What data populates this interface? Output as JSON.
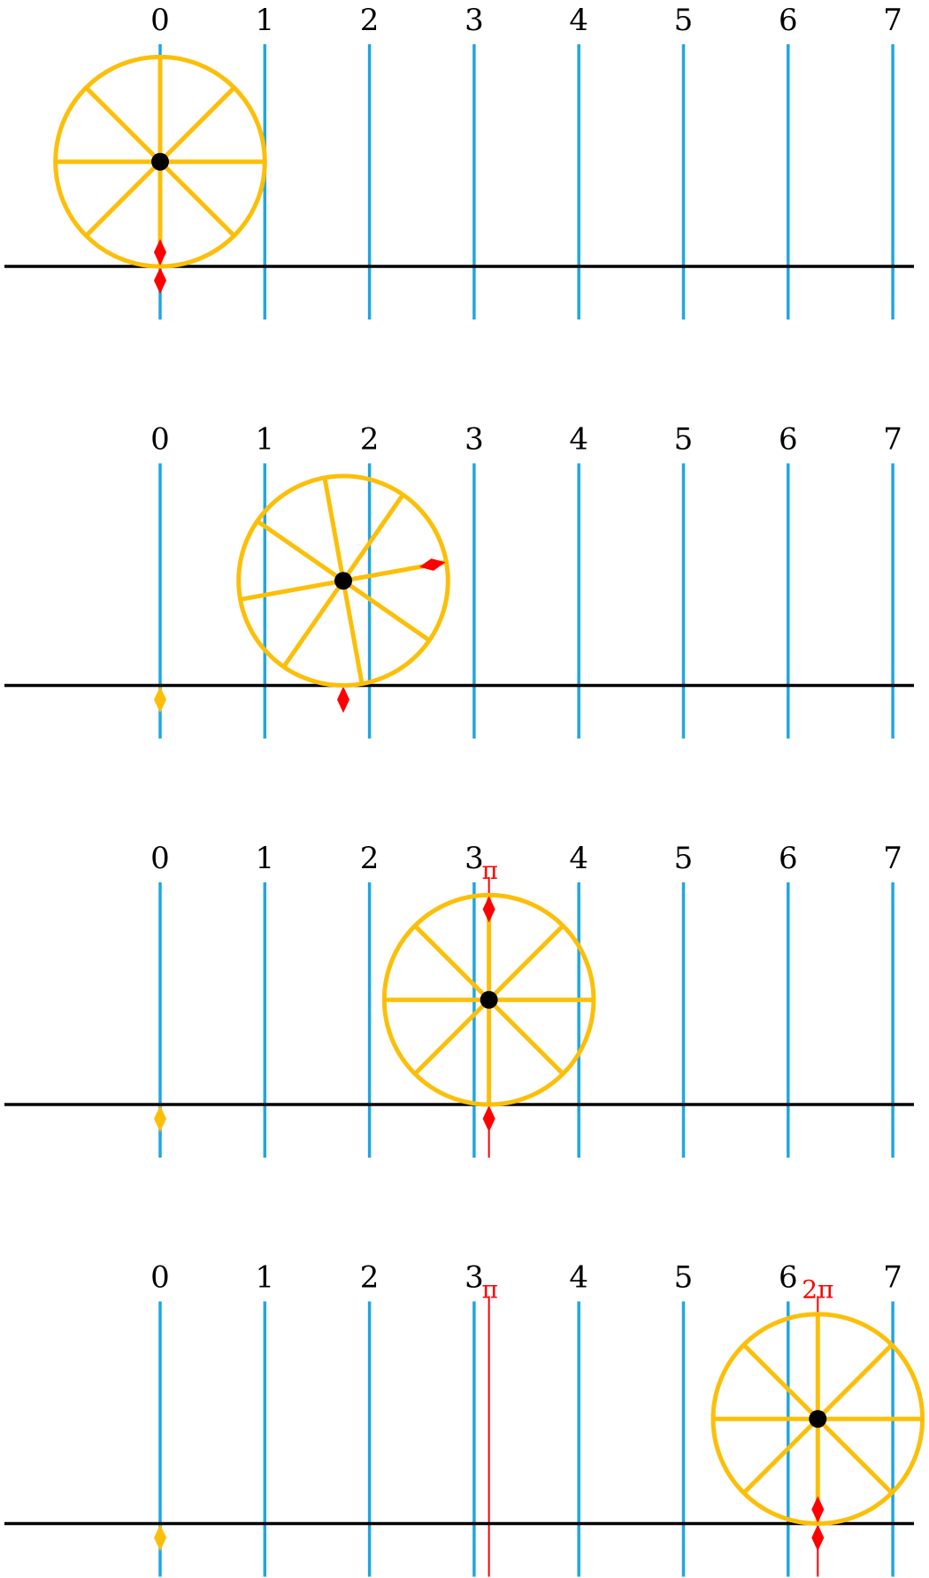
{
  "colors": {
    "gridline": "#1fa7e0",
    "wheel": "#fcbf09",
    "ground": "#000000",
    "hub": "#000000",
    "marker": "#ff0000",
    "origin_marker": "#fcbf09",
    "trace": "#ff0000"
  },
  "axis": {
    "ticks": [
      "0",
      "1",
      "2",
      "3",
      "4",
      "5",
      "6",
      "7"
    ],
    "x_min": 0,
    "x_max": 7
  },
  "wheel": {
    "radius": 1,
    "spokes": 8
  },
  "panels": [
    {
      "center_x": 0,
      "rotation_rad": 0,
      "origin_marker": false,
      "trace_lines": [],
      "trace_labels": []
    },
    {
      "center_x": 1.75,
      "rotation_rad": 1.75,
      "origin_marker": true,
      "trace_lines": [],
      "trace_labels": []
    },
    {
      "center_x": 3.14159,
      "rotation_rad": 3.14159,
      "origin_marker": true,
      "trace_lines": [
        3.14159
      ],
      "trace_labels": [
        {
          "x": 3.14159,
          "text": "π"
        }
      ]
    },
    {
      "center_x": 6.28318,
      "rotation_rad": 6.28318,
      "origin_marker": true,
      "trace_lines": [
        3.14159,
        6.28318
      ],
      "trace_labels": [
        {
          "x": 3.14159,
          "text": "π"
        },
        {
          "x": 6.28318,
          "text": "2π"
        }
      ]
    }
  ]
}
